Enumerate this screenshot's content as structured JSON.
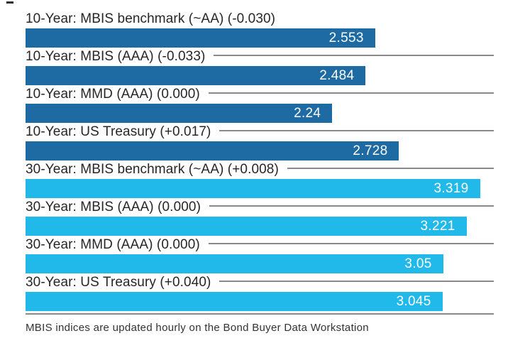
{
  "chart_data": {
    "type": "bar",
    "orientation": "horizontal",
    "categories": [
      "10-Year: MBIS benchmark (~AA) (-0.030)",
      "10-Year: MBIS (AAA) (-0.033)",
      "10-Year: MMD (AAA) (0.000)",
      "10-Year: US Treasury (+0.017)",
      "30-Year: MBIS benchmark (~AA) (+0.008)",
      "30-Year: MBIS (AAA) (0.000)",
      "30-Year: MMD (AAA) (0.000)",
      "30-Year: US Treasury (+0.040)"
    ],
    "values": [
      2.553,
      2.484,
      2.24,
      2.728,
      3.319,
      3.221,
      3.05,
      3.045
    ],
    "value_labels": [
      "2.553",
      "2.484",
      "2.24",
      "2.728",
      "3.319",
      "3.221",
      "3.05",
      "3.045"
    ],
    "series_groups": [
      "10-Year",
      "10-Year",
      "10-Year",
      "10-Year",
      "30-Year",
      "30-Year",
      "30-Year",
      "30-Year"
    ],
    "group_colors": {
      "10-Year": "#1e6ba3",
      "30-Year": "#20b9e9"
    },
    "xlim": [
      0,
      3.42
    ],
    "grid": false,
    "legend": "none",
    "bar_label_position": "inside-right",
    "footnote": "MBIS indices are updated hourly on the Bond Buyer Data Workstation"
  },
  "colors": {
    "bar_10yr": "#1e6ba3",
    "bar_30yr": "#20b9e9",
    "rule": "#8a8a8a",
    "label_text": "#262626",
    "value_text": "#ffffff",
    "background": "#ffffff"
  }
}
